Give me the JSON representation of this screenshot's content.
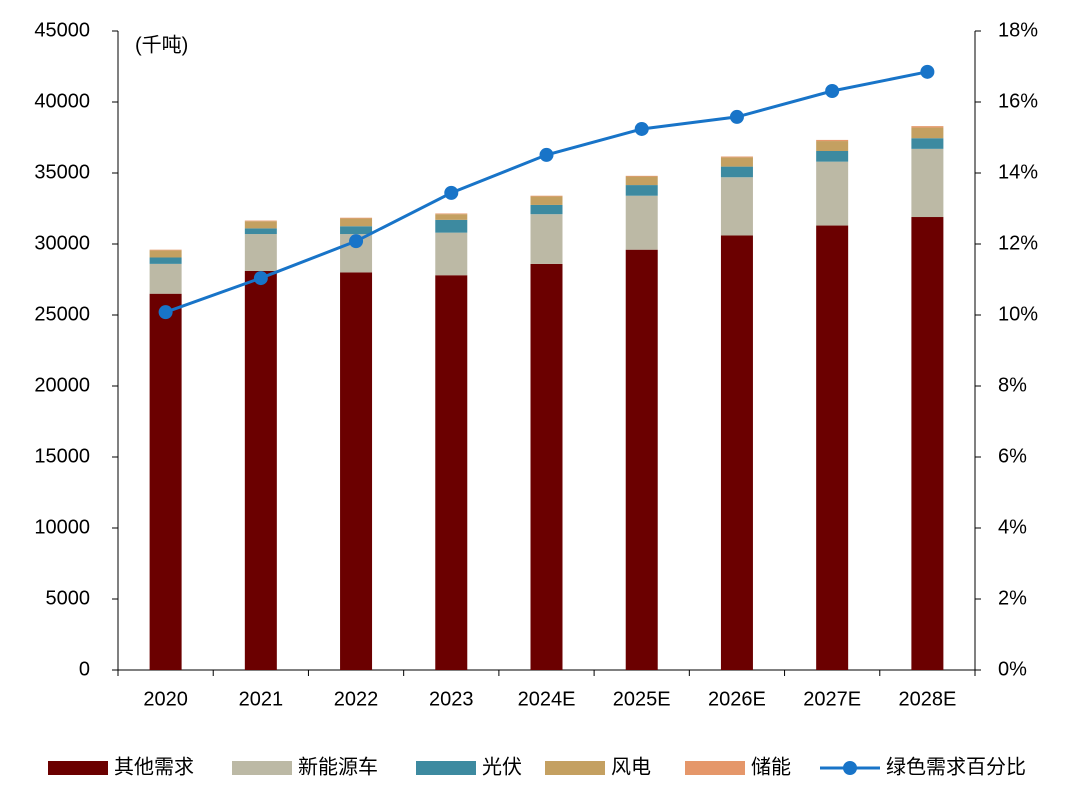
{
  "chart_data": {
    "type": "bar",
    "stacked": true,
    "unit_label": "(千吨)",
    "categories": [
      "2020",
      "2021",
      "2022",
      "2023",
      "2024E",
      "2025E",
      "2026E",
      "2027E",
      "2028E"
    ],
    "series": [
      {
        "name": "其他需求",
        "color": "#6b0000",
        "values": [
          26500,
          28100,
          28000,
          27800,
          28600,
          29600,
          30600,
          31300,
          31900
        ]
      },
      {
        "name": "新能源车",
        "color": "#bcb9a5",
        "values": [
          2100,
          2600,
          2700,
          3000,
          3500,
          3800,
          4100,
          4500,
          4800
        ]
      },
      {
        "name": "光伏",
        "color": "#3d8aa0",
        "values": [
          450,
          400,
          550,
          900,
          650,
          750,
          750,
          750,
          750
        ]
      },
      {
        "name": "风电",
        "color": "#c4a061",
        "values": [
          500,
          500,
          550,
          400,
          600,
          600,
          650,
          700,
          750
        ]
      },
      {
        "name": "储能",
        "color": "#e5976a",
        "values": [
          50,
          50,
          50,
          50,
          50,
          50,
          60,
          80,
          100
        ]
      },
      {
        "name": "绿色需求百分比",
        "color": "#1874c8",
        "type": "line",
        "axis": "y2",
        "values": [
          10.08,
          11.04,
          12.08,
          13.44,
          14.51,
          15.24,
          15.58,
          16.31,
          16.85
        ]
      }
    ],
    "ylim": [
      0,
      45000
    ],
    "yticks": [
      0,
      5000,
      10000,
      15000,
      20000,
      25000,
      30000,
      35000,
      40000,
      45000
    ],
    "y2lim": [
      0,
      18
    ],
    "y2ticks": [
      {
        "value": 0,
        "label": "0%"
      },
      {
        "value": 2,
        "label": "2%"
      },
      {
        "value": 4,
        "label": "4%"
      },
      {
        "value": 6,
        "label": "6%"
      },
      {
        "value": 8,
        "label": "8%"
      },
      {
        "value": 10,
        "label": "10%"
      },
      {
        "value": 12,
        "label": "12%"
      },
      {
        "value": 14,
        "label": "14%"
      },
      {
        "value": 16,
        "label": "16%"
      },
      {
        "value": 18,
        "label": "18%"
      }
    ],
    "legend": "bottom"
  }
}
